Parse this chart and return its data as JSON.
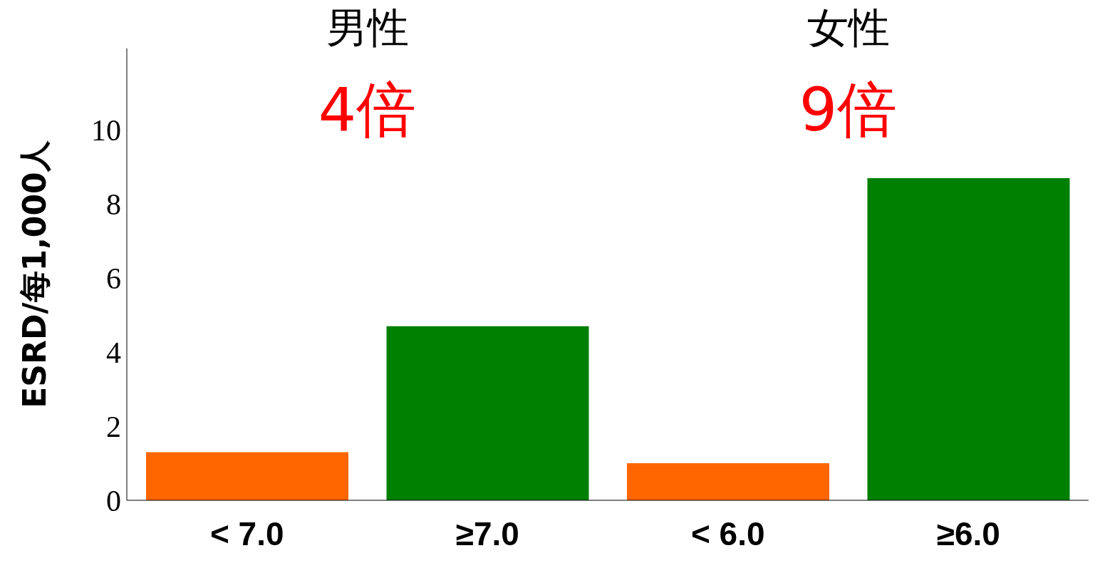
{
  "chart_data": {
    "type": "bar",
    "ylabel": "ESRD/每1,000人",
    "categories": [
      "< 7.0",
      "≥7.0",
      "< 6.0",
      "≥6.0"
    ],
    "values": [
      1.3,
      4.7,
      1.0,
      8.7
    ],
    "colors": [
      "#ff6600",
      "#008000",
      "#ff6600",
      "#008000"
    ],
    "ylim": [
      0,
      12.2
    ],
    "yticks": [
      0,
      2,
      4,
      6,
      8,
      10
    ],
    "annotations": [
      "男性",
      "女性",
      "4倍",
      "9倍"
    ]
  }
}
